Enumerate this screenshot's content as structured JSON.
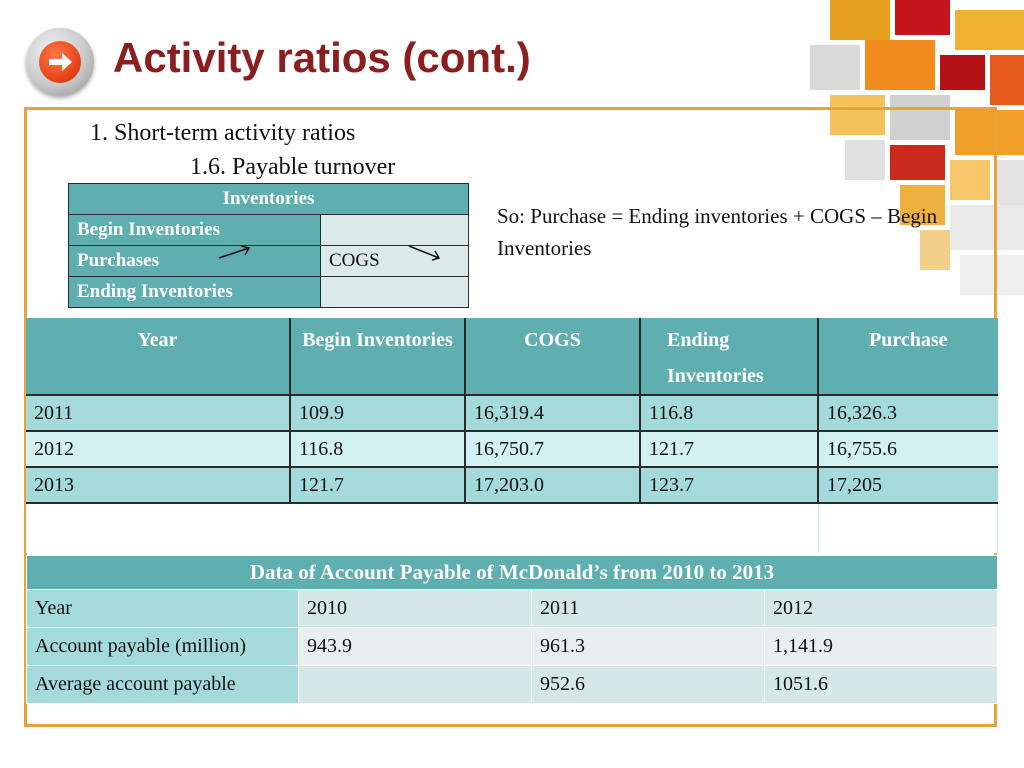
{
  "title": "Activity ratios (cont.)",
  "heading1": "1. Short-term activity ratios",
  "heading2": "1.6. Payable turnover",
  "inventories_table": {
    "header": "Inventories",
    "rows": [
      {
        "label": "Begin Inventories",
        "value": ""
      },
      {
        "label": "Purchases",
        "value": "COGS"
      },
      {
        "label": "Ending Inventories",
        "value": ""
      }
    ]
  },
  "note": "So: Purchase = Ending inventories + COGS – Begin Inventories",
  "purchase_table": {
    "headers": [
      "Year",
      "Begin Inventories",
      "COGS",
      "Ending Inventories",
      "Purchase"
    ],
    "rows": [
      [
        "2011",
        "109.9",
        "16,319.4",
        "116.8",
        "16,326.3"
      ],
      [
        "2012",
        "116.8",
        "16,750.7",
        "121.7",
        "16,755.6"
      ],
      [
        "2013",
        "121.7",
        "17,203.0",
        "123.7",
        "17,205"
      ]
    ]
  },
  "ap_table": {
    "caption": "Data of Account Payable of McDonald’s from 2010 to 2013",
    "rows": [
      [
        "Year",
        "2010",
        "2011",
        "2012"
      ],
      [
        "Account payable (million)",
        "943.9",
        "961.3",
        "1,141.9"
      ],
      [
        "Average account payable",
        "",
        "952.6",
        "1051.6"
      ]
    ]
  },
  "colors": {
    "title": "#8b1e1e",
    "frame": "#e7a33a",
    "table_header": "#5faeb0",
    "row_dark": "#a5dadb",
    "row_light": "#d2f1f2"
  }
}
